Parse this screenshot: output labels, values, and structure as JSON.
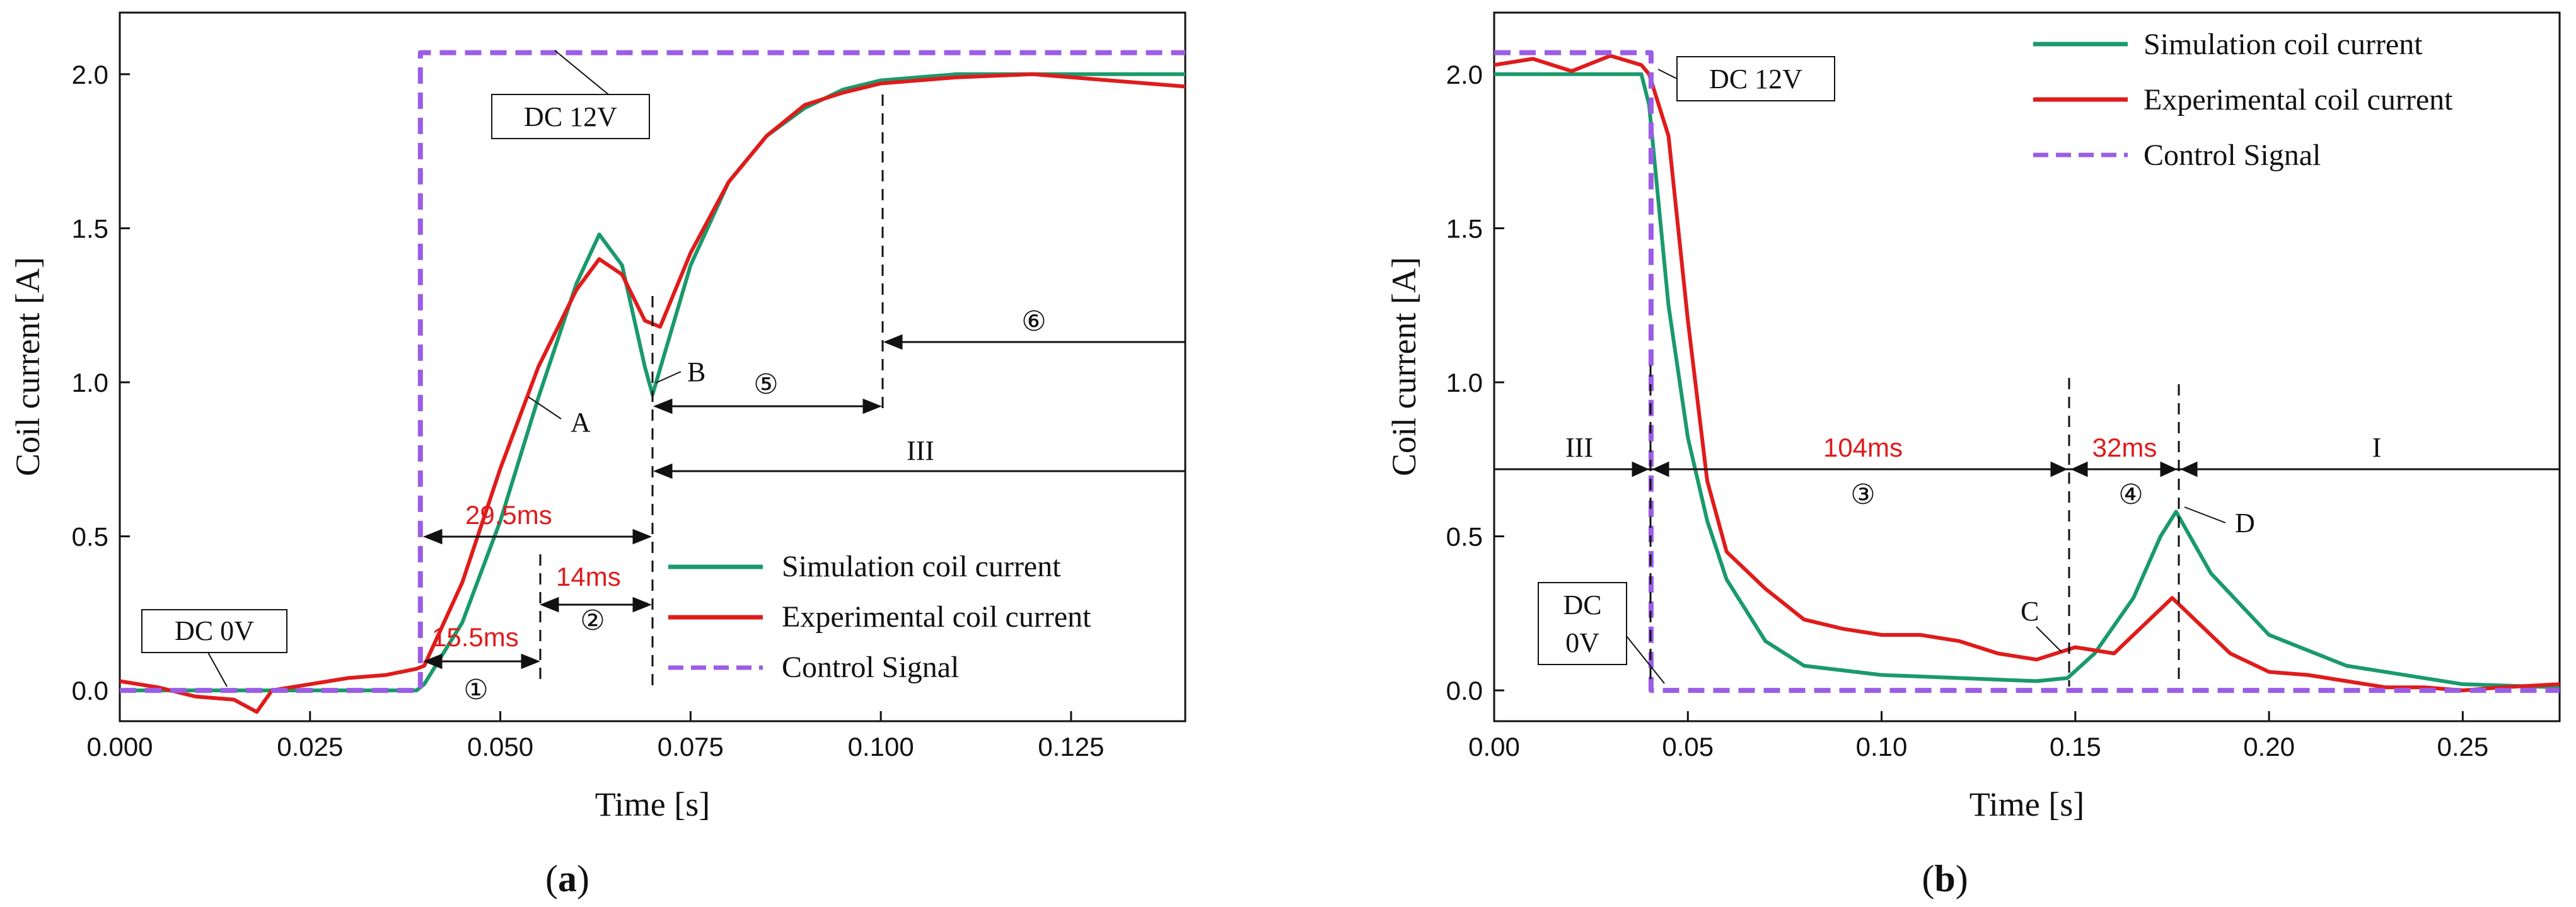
{
  "chart_data": [
    {
      "id": "a",
      "type": "line",
      "subplot_label": "a",
      "xlabel": "Time [s]",
      "ylabel": "Coil current [A]",
      "xlim": [
        0,
        0.14
      ],
      "ylim": [
        -0.1,
        2.2
      ],
      "xticks": [
        "0.000",
        "0.025",
        "0.050",
        "0.075",
        "0.100",
        "0.125"
      ],
      "xtick_values": [
        0,
        0.025,
        0.05,
        0.075,
        0.1,
        0.125
      ],
      "yticks": [
        "0.0",
        "0.5",
        "1.0",
        "1.5",
        "2.0"
      ],
      "ytick_values": [
        0,
        0.5,
        1.0,
        1.5,
        2.0
      ],
      "legend": [
        "Simulation coil current",
        "Experimental coil current",
        "Control Signal"
      ],
      "legend_position": "center-right",
      "series": [
        {
          "name": "Simulation coil current",
          "color": "#1a9a6c",
          "style": "solid",
          "x": [
            0,
            0.039,
            0.04,
            0.045,
            0.05,
            0.055,
            0.06,
            0.063,
            0.066,
            0.069,
            0.07,
            0.075,
            0.08,
            0.085,
            0.09,
            0.095,
            0.1,
            0.11,
            0.12,
            0.13,
            0.14
          ],
          "y": [
            0.0,
            0.0,
            0.02,
            0.22,
            0.55,
            0.95,
            1.32,
            1.48,
            1.38,
            1.05,
            0.96,
            1.38,
            1.65,
            1.8,
            1.89,
            1.95,
            1.98,
            2.0,
            2.0,
            2.0,
            2.0
          ]
        },
        {
          "name": "Experimental coil current",
          "color": "#e01b1b",
          "style": "solid",
          "x": [
            0,
            0.005,
            0.01,
            0.015,
            0.018,
            0.02,
            0.025,
            0.03,
            0.035,
            0.039,
            0.04,
            0.045,
            0.05,
            0.055,
            0.06,
            0.063,
            0.066,
            0.069,
            0.071,
            0.075,
            0.08,
            0.085,
            0.09,
            0.095,
            0.1,
            0.11,
            0.12,
            0.13,
            0.14
          ],
          "y": [
            0.03,
            0.01,
            -0.02,
            -0.03,
            -0.07,
            0.0,
            0.02,
            0.04,
            0.05,
            0.07,
            0.08,
            0.35,
            0.72,
            1.05,
            1.3,
            1.4,
            1.35,
            1.2,
            1.18,
            1.42,
            1.65,
            1.8,
            1.9,
            1.94,
            1.97,
            1.99,
            2.0,
            1.98,
            1.96
          ]
        },
        {
          "name": "Control Signal",
          "color": "#9b5de5",
          "style": "dashed",
          "x": [
            0,
            0.0395,
            0.0395,
            0.14
          ],
          "y": [
            0.0,
            0.0,
            2.07,
            2.07
          ]
        }
      ],
      "annotations": {
        "dc12": "DC 12V",
        "dc0": "DC 0V",
        "A": "A",
        "B": "B",
        "t29": "29.5ms",
        "t14": "14ms",
        "t155": "15.5ms",
        "ph1": "①",
        "ph2": "②",
        "ph5": "⑤",
        "ph6": "⑥",
        "phIII": "III"
      }
    },
    {
      "id": "b",
      "type": "line",
      "subplot_label": "b",
      "xlabel": "Time [s]",
      "ylabel": "Coil current [A]",
      "xlim": [
        0,
        0.275
      ],
      "ylim": [
        -0.1,
        2.2
      ],
      "xticks": [
        "0.00",
        "0.05",
        "0.10",
        "0.15",
        "0.20",
        "0.25"
      ],
      "xtick_values": [
        0,
        0.05,
        0.1,
        0.15,
        0.2,
        0.25
      ],
      "yticks": [
        "0.0",
        "0.5",
        "1.0",
        "1.5",
        "2.0"
      ],
      "ytick_values": [
        0,
        0.5,
        1.0,
        1.5,
        2.0
      ],
      "legend": [
        "Simulation coil current",
        "Experimental coil current",
        "Control Signal"
      ],
      "legend_position": "top-right",
      "series": [
        {
          "name": "Simulation coil current",
          "color": "#1a9a6c",
          "style": "solid",
          "x": [
            0,
            0.038,
            0.04,
            0.045,
            0.05,
            0.055,
            0.06,
            0.07,
            0.08,
            0.1,
            0.12,
            0.14,
            0.148,
            0.155,
            0.165,
            0.172,
            0.176,
            0.185,
            0.2,
            0.22,
            0.25,
            0.275
          ],
          "y": [
            2.0,
            2.0,
            1.9,
            1.25,
            0.82,
            0.55,
            0.36,
            0.16,
            0.08,
            0.05,
            0.04,
            0.03,
            0.04,
            0.12,
            0.3,
            0.5,
            0.58,
            0.38,
            0.18,
            0.08,
            0.02,
            0.01
          ]
        },
        {
          "name": "Experimental coil current",
          "color": "#e01b1b",
          "style": "solid",
          "x": [
            0,
            0.01,
            0.02,
            0.03,
            0.038,
            0.04,
            0.045,
            0.05,
            0.055,
            0.06,
            0.07,
            0.08,
            0.09,
            0.1,
            0.11,
            0.12,
            0.13,
            0.14,
            0.15,
            0.16,
            0.17,
            0.175,
            0.18,
            0.19,
            0.2,
            0.21,
            0.22,
            0.23,
            0.24,
            0.25,
            0.26,
            0.275
          ],
          "y": [
            2.03,
            2.05,
            2.01,
            2.06,
            2.03,
            2.0,
            1.8,
            1.2,
            0.68,
            0.45,
            0.33,
            0.23,
            0.2,
            0.18,
            0.18,
            0.16,
            0.12,
            0.1,
            0.14,
            0.12,
            0.24,
            0.3,
            0.24,
            0.12,
            0.06,
            0.05,
            0.03,
            0.01,
            0.01,
            0.0,
            0.01,
            0.02
          ]
        },
        {
          "name": "Control Signal",
          "color": "#9b5de5",
          "style": "dashed",
          "x": [
            0,
            0.0405,
            0.0405,
            0.275
          ],
          "y": [
            2.07,
            2.07,
            0.0,
            0.0
          ]
        }
      ],
      "annotations": {
        "dc12": "DC 12V",
        "dc0a": "DC",
        "dc0b": "0V",
        "C": "C",
        "D": "D",
        "t104": "104ms",
        "t32": "32ms",
        "ph3": "③",
        "ph4": "④",
        "phIII": "III",
        "phI": "I"
      }
    }
  ]
}
